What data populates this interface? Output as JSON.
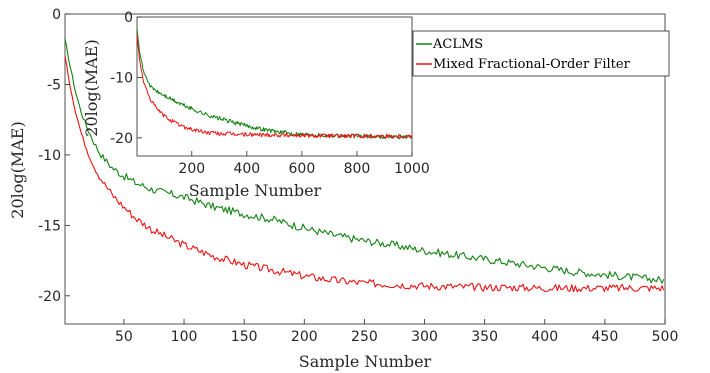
{
  "colors": {
    "aclms": "#128212",
    "mixed": "#ee1111",
    "axis": "#262626"
  },
  "chart_data": [
    {
      "type": "line",
      "role": "main",
      "xlabel": "Sample Number",
      "ylabel": "20log(MAE)",
      "xlim": [
        1,
        500
      ],
      "ylim": [
        -22,
        0
      ],
      "xticks": [
        50,
        100,
        150,
        200,
        250,
        300,
        350,
        400,
        450,
        500
      ],
      "yticks": [
        0,
        -5,
        -10,
        -15,
        -20
      ],
      "grid": false,
      "legend": "top-right",
      "series": [
        {
          "name": "ACLMS",
          "color": "#128212",
          "x": [
            1,
            5,
            10,
            15,
            20,
            25,
            30,
            40,
            50,
            60,
            75,
            100,
            125,
            150,
            175,
            200,
            225,
            250,
            275,
            300,
            325,
            350,
            375,
            400,
            425,
            450,
            475,
            500
          ],
          "y": [
            -1.8,
            -3.6,
            -5.6,
            -7.1,
            -8.2,
            -9.1,
            -9.9,
            -10.9,
            -11.5,
            -12.0,
            -12.5,
            -13.0,
            -13.7,
            -14.2,
            -14.6,
            -15.2,
            -15.7,
            -16.1,
            -16.4,
            -16.8,
            -17.1,
            -17.4,
            -17.7,
            -18.0,
            -18.3,
            -18.5,
            -18.7,
            -18.9
          ]
        },
        {
          "name": "Mixed Fractional-Order Filter",
          "color": "#ee1111",
          "x": [
            1,
            5,
            10,
            15,
            20,
            25,
            30,
            40,
            50,
            60,
            75,
            100,
            125,
            150,
            175,
            200,
            225,
            250,
            275,
            300,
            325,
            350,
            375,
            400,
            425,
            450,
            475,
            500
          ],
          "y": [
            -3.0,
            -5.0,
            -7.0,
            -8.6,
            -9.8,
            -10.8,
            -11.6,
            -12.8,
            -13.7,
            -14.5,
            -15.4,
            -16.4,
            -17.2,
            -17.8,
            -18.2,
            -18.6,
            -18.9,
            -19.1,
            -19.2,
            -19.3,
            -19.35,
            -19.4,
            -19.4,
            -19.45,
            -19.45,
            -19.45,
            -19.45,
            -19.45
          ]
        }
      ]
    },
    {
      "type": "line",
      "role": "inset",
      "xlabel": "Sample Number",
      "ylabel": "20log(MAE)",
      "xlim": [
        1,
        1000
      ],
      "ylim": [
        -23,
        0
      ],
      "xticks": [
        200,
        400,
        600,
        800,
        1000
      ],
      "yticks": [
        0,
        -10,
        -20
      ],
      "grid": false,
      "series": [
        {
          "name": "ACLMS",
          "color": "#128212",
          "x": [
            1,
            10,
            25,
            50,
            75,
            100,
            150,
            200,
            250,
            300,
            350,
            400,
            450,
            500,
            550,
            600,
            650,
            700,
            800,
            900,
            1000
          ],
          "y": [
            -1.8,
            -5.6,
            -9.1,
            -11.5,
            -12.4,
            -13.0,
            -14.2,
            -15.2,
            -16.1,
            -16.8,
            -17.4,
            -18.0,
            -18.5,
            -18.9,
            -19.2,
            -19.4,
            -19.5,
            -19.6,
            -19.7,
            -19.8,
            -19.8
          ]
        },
        {
          "name": "Mixed Fractional-Order Filter",
          "color": "#ee1111",
          "x": [
            1,
            10,
            25,
            50,
            75,
            100,
            150,
            200,
            250,
            300,
            400,
            500,
            600,
            700,
            800,
            900,
            1000
          ],
          "y": [
            -3.0,
            -7.0,
            -10.8,
            -13.7,
            -15.3,
            -16.4,
            -17.8,
            -18.6,
            -19.1,
            -19.3,
            -19.45,
            -19.5,
            -19.6,
            -19.65,
            -19.7,
            -19.7,
            -19.7
          ]
        }
      ]
    }
  ]
}
